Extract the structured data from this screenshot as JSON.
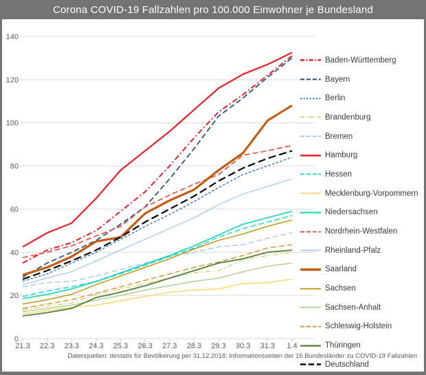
{
  "title": "Corona COVID-19 Fallzahlen pro 100.000 Einwohner je Bundesland",
  "footer": "Datenquellen: destatis für Bevölkerung per 31.12.2018; Informationsseiten der 16 Bundesländer zu COVID-19 Fallzahlen",
  "colors": {
    "frame": "#737373",
    "title_text": "#ffffff",
    "plot_background": "#ffffff",
    "gridline": "#d9d9d9",
    "tick_line": "#bfbfbf",
    "axis_text": "#595959",
    "legend_text": "#3a3a3a",
    "footer_text": "#595959"
  },
  "chart_data": {
    "type": "line",
    "title": "Corona COVID-19 Fallzahlen pro 100.000 Einwohner je Bundesland",
    "xlabel": "",
    "ylabel": "",
    "x": [
      "21.3",
      "22.3",
      "23.3",
      "24.3",
      "25.3",
      "26.3",
      "27.3",
      "28.3",
      "29.3",
      "30.3",
      "31.3",
      "1.4"
    ],
    "ylim": [
      0,
      140
    ],
    "yticks": [
      0,
      20,
      40,
      60,
      80,
      100,
      120,
      140
    ],
    "grid": true,
    "legend_position": "right",
    "series": [
      {
        "name": "Baden-Württemberg",
        "color": "#ec1c24",
        "line_style": "dashdot",
        "line_width": 2,
        "values": [
          35,
          41,
          44.5,
          50,
          59,
          68,
          80,
          93,
          105,
          113,
          122,
          131
        ]
      },
      {
        "name": "Bayern",
        "color": "#1f4e79",
        "line_style": "dash",
        "line_width": 1.7,
        "values": [
          28.5,
          35,
          40,
          45.5,
          53,
          61,
          74,
          88,
          103,
          111.5,
          121,
          130
        ]
      },
      {
        "name": "Berlin",
        "color": "#2e75b6",
        "line_style": "shortdash",
        "line_width": 1.4,
        "values": [
          26.5,
          30,
          35,
          40,
          46,
          52,
          57.5,
          63.5,
          70,
          76,
          80,
          84
        ]
      },
      {
        "name": "Brandenburg",
        "color": "#d9ce7c",
        "line_style": "dashdot",
        "line_width": 1.4,
        "values": [
          13.5,
          15,
          16.5,
          20.5,
          23,
          25.5,
          28,
          30.5,
          31.5,
          36.5,
          38.5,
          40
        ]
      },
      {
        "name": "Bremen",
        "color": "#9dc3e6",
        "line_style": "dash",
        "line_width": 1.3,
        "values": [
          24,
          26,
          26.5,
          29,
          32,
          35,
          38,
          40,
          42.5,
          43.5,
          46.5,
          49
        ]
      },
      {
        "name": "Hamburg",
        "color": "#ec1c24",
        "line_style": "solid",
        "line_width": 2.2,
        "values": [
          42.5,
          49,
          53.5,
          65,
          78,
          87,
          96,
          106,
          116,
          122.5,
          127,
          132.5
        ]
      },
      {
        "name": "Hessen",
        "color": "#36e0cd",
        "line_style": "dash",
        "line_width": 1.8,
        "values": [
          19.5,
          22,
          24,
          26.5,
          30,
          34,
          38,
          42,
          47,
          51,
          54,
          57
        ]
      },
      {
        "name": "Mecklenburg-Vorpommern",
        "color": "#fbd467",
        "line_style": "solid",
        "line_width": 1.4,
        "values": [
          11.5,
          13,
          14.5,
          15.5,
          17.5,
          19.5,
          21.5,
          22.5,
          23,
          25.5,
          26,
          27.5
        ]
      },
      {
        "name": "Niedersachsen",
        "color": "#18cfc0",
        "line_style": "solid",
        "line_width": 1.6,
        "values": [
          18.5,
          20.5,
          23,
          26.5,
          30.5,
          34.5,
          38.5,
          43,
          48,
          53,
          56,
          59
        ]
      },
      {
        "name": "Nordrhein-Westfalen",
        "color": "#e15241",
        "line_style": "dash",
        "line_width": 1.7,
        "values": [
          37.5,
          40,
          43,
          47.5,
          52,
          61,
          66.5,
          71.5,
          76,
          85,
          87,
          89.5
        ]
      },
      {
        "name": "Rheinland-Pfalz",
        "color": "#a6c9ec",
        "line_style": "solid",
        "line_width": 1.3,
        "values": [
          25,
          28,
          31,
          36,
          41,
          46,
          51,
          56,
          62,
          67,
          70.5,
          74
        ]
      },
      {
        "name": "Saarland",
        "color": "#c55a11",
        "line_style": "solid",
        "line_width": 3.2,
        "values": [
          29.5,
          33,
          38,
          45,
          47,
          58,
          64,
          69,
          78,
          86,
          101,
          108
        ]
      },
      {
        "name": "Sachsen",
        "color": "#bf9000",
        "line_style": "solid",
        "line_width": 1.4,
        "values": [
          16,
          18,
          20.5,
          25,
          29,
          33,
          37,
          41.5,
          45.5,
          48.5,
          52,
          55
        ]
      },
      {
        "name": "Sachsen-Anhalt",
        "color": "#a9d18e",
        "line_style": "solid",
        "line_width": 1.4,
        "values": [
          12.5,
          14,
          15.5,
          17.8,
          20,
          22.5,
          24.5,
          26.5,
          28,
          31,
          33.5,
          35
        ]
      },
      {
        "name": "Schleswig-Holstein",
        "color": "#df962f",
        "line_style": "dash",
        "line_width": 1.5,
        "values": [
          14,
          16,
          18,
          21,
          24,
          27,
          30,
          33,
          35.5,
          38.5,
          42,
          43.5
        ]
      },
      {
        "name": "Thüringen",
        "color": "#4e7e32",
        "line_style": "solid",
        "line_width": 1.8,
        "values": [
          10.5,
          12,
          14,
          19,
          21.5,
          24.5,
          28,
          31.5,
          35,
          37,
          40,
          41
        ]
      },
      {
        "name": "Deutschland",
        "color": "#000000",
        "line_style": "longdash",
        "line_width": 2.2,
        "values": [
          27.5,
          31.5,
          36,
          41,
          47,
          54,
          60,
          66,
          73,
          79,
          83.5,
          87
        ]
      }
    ]
  }
}
